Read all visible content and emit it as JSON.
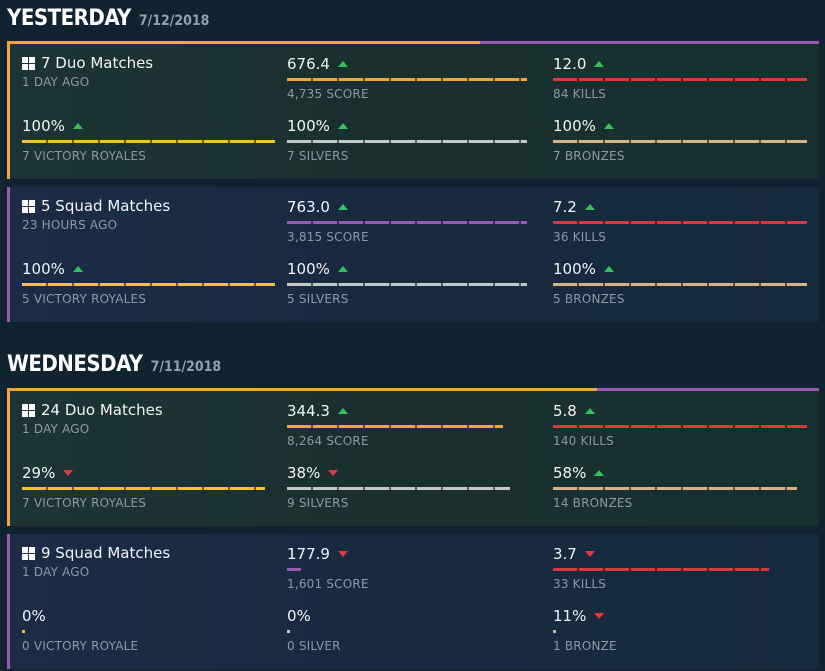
{
  "sections": [
    {
      "title": "YESTERDAY",
      "date": "7/12/2018",
      "cards": [
        {
          "type": "duo",
          "title": "7 Duo Matches",
          "ago": "1 DAY AGO",
          "score_val": "676.4",
          "score_trend": "up",
          "score_label": "4,735 SCORE",
          "score_fill": 1.0,
          "kd_val": "12.0",
          "kd_trend": "up",
          "kd_label": "84 KILLS",
          "kd_fill": 1.0,
          "win_val": "100%",
          "win_trend": "up",
          "win_label": "7 VICTORY ROYALES",
          "win_fill": 1.0,
          "silver_val": "100%",
          "silver_trend": "up",
          "silver_label": "7 SILVERS",
          "silver_fill": 1.0,
          "bronze_val": "100%",
          "bronze_trend": "up",
          "bronze_label": "7 BRONZES",
          "bronze_fill": 1.0
        },
        {
          "type": "squad",
          "title": "5 Squad Matches",
          "ago": "23 HOURS AGO",
          "score_val": "763.0",
          "score_trend": "up",
          "score_label": "3,815 SCORE",
          "score_fill": 1.0,
          "kd_val": "7.2",
          "kd_trend": "up",
          "kd_label": "36 KILLS",
          "kd_fill": 1.0,
          "win_val": "100%",
          "win_trend": "up",
          "win_label": "5 VICTORY ROYALES",
          "win_fill": 1.0,
          "silver_val": "100%",
          "silver_trend": "up",
          "silver_label": "5 SILVERS",
          "silver_fill": 1.0,
          "bronze_val": "100%",
          "bronze_trend": "up",
          "bronze_label": "5 BRONZES",
          "bronze_fill": 1.0
        }
      ]
    },
    {
      "title": "WEDNESDAY",
      "date": "7/11/2018",
      "cards": [
        {
          "type": "duo",
          "title": "24 Duo Matches",
          "ago": "1 DAY AGO",
          "score_val": "344.3",
          "score_trend": "up",
          "score_label": "8,264 SCORE",
          "score_fill": 0.9,
          "kd_val": "5.8",
          "kd_trend": "up",
          "kd_label": "140 KILLS",
          "kd_fill": 1.0,
          "win_val": "29%",
          "win_trend": "down",
          "win_label": "7 VICTORY ROYALES",
          "win_fill": 0.96,
          "silver_val": "38%",
          "silver_trend": "down",
          "silver_label": "9 SILVERS",
          "silver_fill": 0.93,
          "bronze_val": "58%",
          "bronze_trend": "up",
          "bronze_label": "14 BRONZES",
          "bronze_fill": 0.96
        },
        {
          "type": "squad",
          "title": "9 Squad Matches",
          "ago": "1 DAY AGO",
          "score_val": "177.9",
          "score_trend": "down",
          "score_label": "1,601 SCORE",
          "score_fill": 0.06,
          "kd_val": "3.7",
          "kd_trend": "down",
          "kd_label": "33 KILLS",
          "kd_fill": 0.85,
          "win_val": "0%",
          "win_trend": "none",
          "win_label": "0 VICTORY ROYALE",
          "win_fill": 0.01,
          "silver_val": "0%",
          "silver_trend": "none",
          "silver_label": "0 SILVER",
          "silver_fill": 0.01,
          "bronze_val": "11%",
          "bronze_trend": "down",
          "bronze_label": "1 BRONZE",
          "bronze_fill": 0.01
        }
      ]
    }
  ],
  "colors": {
    "duo_accent": "#f3a43a",
    "squad_accent": "#9b59b6",
    "up": "#35c25a",
    "down": "#e03a3a",
    "gold": "#f4c430",
    "red": "#d73a3a",
    "silver": "#c7c7c7",
    "bronze": "#d7b38a"
  }
}
